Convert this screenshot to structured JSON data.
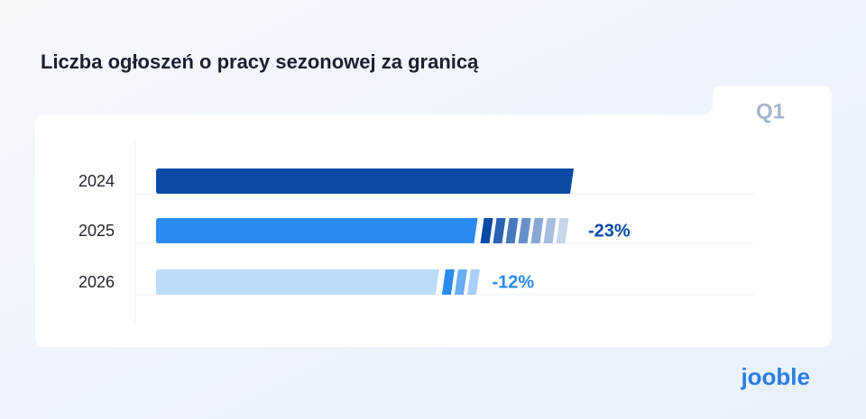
{
  "chart_data": {
    "type": "bar",
    "orientation": "horizontal",
    "title": "Liczba ogłoszeń o pracy sezonowej za granicą",
    "period": "Q1",
    "categories": [
      "2024",
      "2025",
      "2026"
    ],
    "values": [
      100,
      77,
      67.8
    ],
    "colors": [
      "#0a4aa6",
      "#2a8af0",
      "#bcdcf8"
    ],
    "changes": [
      null,
      -23,
      -12
    ],
    "change_labels": [
      null,
      "-23%",
      "-12%"
    ],
    "change_colors": [
      null,
      "#0a4aa6",
      "#2a8af0"
    ],
    "xlim": [
      0,
      100
    ],
    "logo": "jooble"
  }
}
